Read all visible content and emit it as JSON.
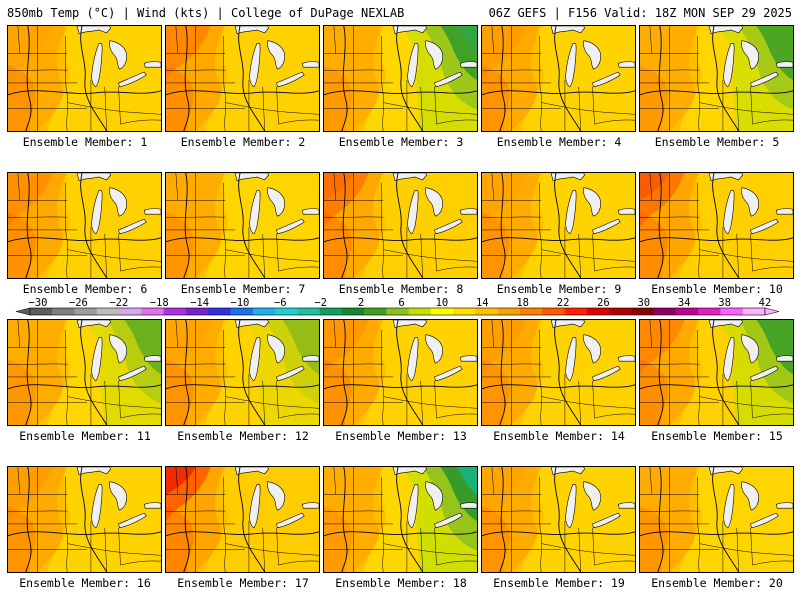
{
  "header": {
    "left": "850mb Temp (°C) | Wind (kts) | College of DuPage NEXLAB",
    "right": "06Z GEFS | F156 Valid: 18Z MON SEP 29 2025"
  },
  "members": [
    {
      "label": "Ensemble Member: 1",
      "heat": 0.35,
      "cool": 0.0
    },
    {
      "label": "Ensemble Member: 2",
      "heat": 0.55,
      "cool": 0.0
    },
    {
      "label": "Ensemble Member: 3",
      "heat": 0.15,
      "cool": 0.85
    },
    {
      "label": "Ensemble Member: 4",
      "heat": 0.4,
      "cool": 0.0
    },
    {
      "label": "Ensemble Member: 5",
      "heat": 0.2,
      "cool": 0.75
    },
    {
      "label": "Ensemble Member: 6",
      "heat": 0.5,
      "cool": 0.0
    },
    {
      "label": "Ensemble Member: 7",
      "heat": 0.3,
      "cool": 0.0
    },
    {
      "label": "Ensemble Member: 8",
      "heat": 0.65,
      "cool": 0.0
    },
    {
      "label": "Ensemble Member: 9",
      "heat": 0.35,
      "cool": 0.0
    },
    {
      "label": "Ensemble Member: 10",
      "heat": 0.7,
      "cool": 0.0
    },
    {
      "label": "Ensemble Member: 11",
      "heat": 0.25,
      "cool": 0.55
    },
    {
      "label": "Ensemble Member: 12",
      "heat": 0.35,
      "cool": 0.35
    },
    {
      "label": "Ensemble Member: 13",
      "heat": 0.45,
      "cool": 0.0
    },
    {
      "label": "Ensemble Member: 14",
      "heat": 0.4,
      "cool": 0.0
    },
    {
      "label": "Ensemble Member: 15",
      "heat": 0.55,
      "cool": 0.8
    },
    {
      "label": "Ensemble Member: 16",
      "heat": 0.4,
      "cool": 0.0
    },
    {
      "label": "Ensemble Member: 17",
      "heat": 0.85,
      "cool": 0.0
    },
    {
      "label": "Ensemble Member: 18",
      "heat": 0.15,
      "cool": 0.95
    },
    {
      "label": "Ensemble Member: 19",
      "heat": 0.35,
      "cool": 0.0
    },
    {
      "label": "Ensemble Member: 20",
      "heat": 0.3,
      "cool": 0.0
    }
  ],
  "colorbar": {
    "ticks": [
      "-30",
      "-26",
      "-22",
      "-18",
      "-14",
      "-10",
      "-6",
      "-2",
      "2",
      "6",
      "10",
      "14",
      "18",
      "22",
      "26",
      "30",
      "34",
      "38",
      "42"
    ],
    "colors": [
      "#5e5e5e",
      "#7f7f7f",
      "#9e9e9e",
      "#bdbdbd",
      "#d6a7ef",
      "#e070f0",
      "#b030e0",
      "#7a20d0",
      "#3030e0",
      "#1a70f0",
      "#20b0f0",
      "#20d0d0",
      "#20c0a0",
      "#10a060",
      "#108a30",
      "#409f20",
      "#8cc020",
      "#c8e000",
      "#ffff00",
      "#ffe000",
      "#ffc000",
      "#ffa000",
      "#ff8000",
      "#ff5a00",
      "#ff2000",
      "#e00000",
      "#b00000",
      "#8a0000",
      "#900060",
      "#c00090",
      "#e020c0",
      "#ff60ff",
      "#ffb0ff"
    ]
  },
  "palette": {
    "yellow": "#ffdc00",
    "light_orange": "#ffbe00",
    "orange": "#ffa000",
    "dark_orange": "#ff7c00",
    "red_orange": "#ff4a00",
    "red": "#e60000",
    "lime": "#c8e000",
    "green": "#8cc020",
    "dark_green": "#2f9a2a",
    "teal": "#10b890",
    "lake": "#f0f0f0",
    "lines": "#000000"
  }
}
